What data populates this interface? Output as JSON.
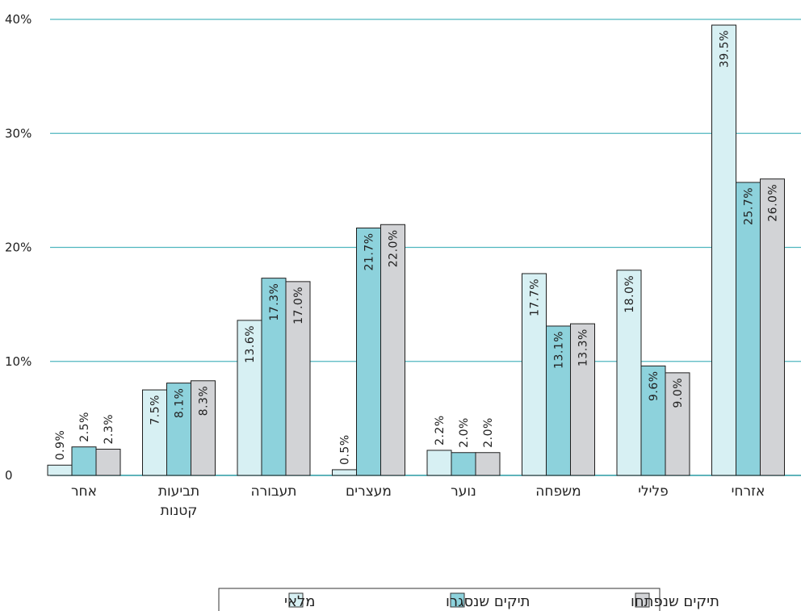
{
  "chart_data": {
    "type": "bar",
    "title": "",
    "xlabel": "",
    "ylabel": "",
    "ylim": [
      0,
      40
    ],
    "y_ticks": [
      "0",
      "10%",
      "20%",
      "30%",
      "40%"
    ],
    "grid": true,
    "legend_position": "bottom",
    "categories": [
      [
        "אחר"
      ],
      [
        "תביעות",
        "קטנות"
      ],
      [
        "תעבורה"
      ],
      [
        "מעצרים"
      ],
      [
        "נוער"
      ],
      [
        "משפחה"
      ],
      [
        "פלילי"
      ],
      [
        "אזרחי"
      ]
    ],
    "series": [
      {
        "name": "מלאי",
        "color": "#d7f0f3",
        "values": [
          0.9,
          7.5,
          13.6,
          0.5,
          2.2,
          17.7,
          18.0,
          39.5
        ],
        "labels": [
          "0.9%",
          "7.5%",
          "13.6%",
          "0.5%",
          "2.2%",
          "17.7%",
          "18.0%",
          "39.5%"
        ]
      },
      {
        "name": "תיקים שנסגרו",
        "color": "#8dd2dc",
        "values": [
          2.5,
          8.1,
          17.3,
          21.7,
          2.0,
          13.1,
          9.6,
          25.7
        ],
        "labels": [
          "2.5%",
          "8.1%",
          "17.3%",
          "21.7%",
          "2.0%",
          "13.1%",
          "9.6%",
          "25.7%"
        ]
      },
      {
        "name": "תיקים שנפתחו",
        "color": "#d2d3d6",
        "values": [
          2.3,
          8.3,
          17.0,
          22.0,
          2.0,
          13.3,
          9.0,
          26.0
        ],
        "labels": [
          "2.3%",
          "8.3%",
          "17.0%",
          "22.0%",
          "2.0%",
          "13.3%",
          "9.0%",
          "26.0%"
        ]
      }
    ]
  }
}
